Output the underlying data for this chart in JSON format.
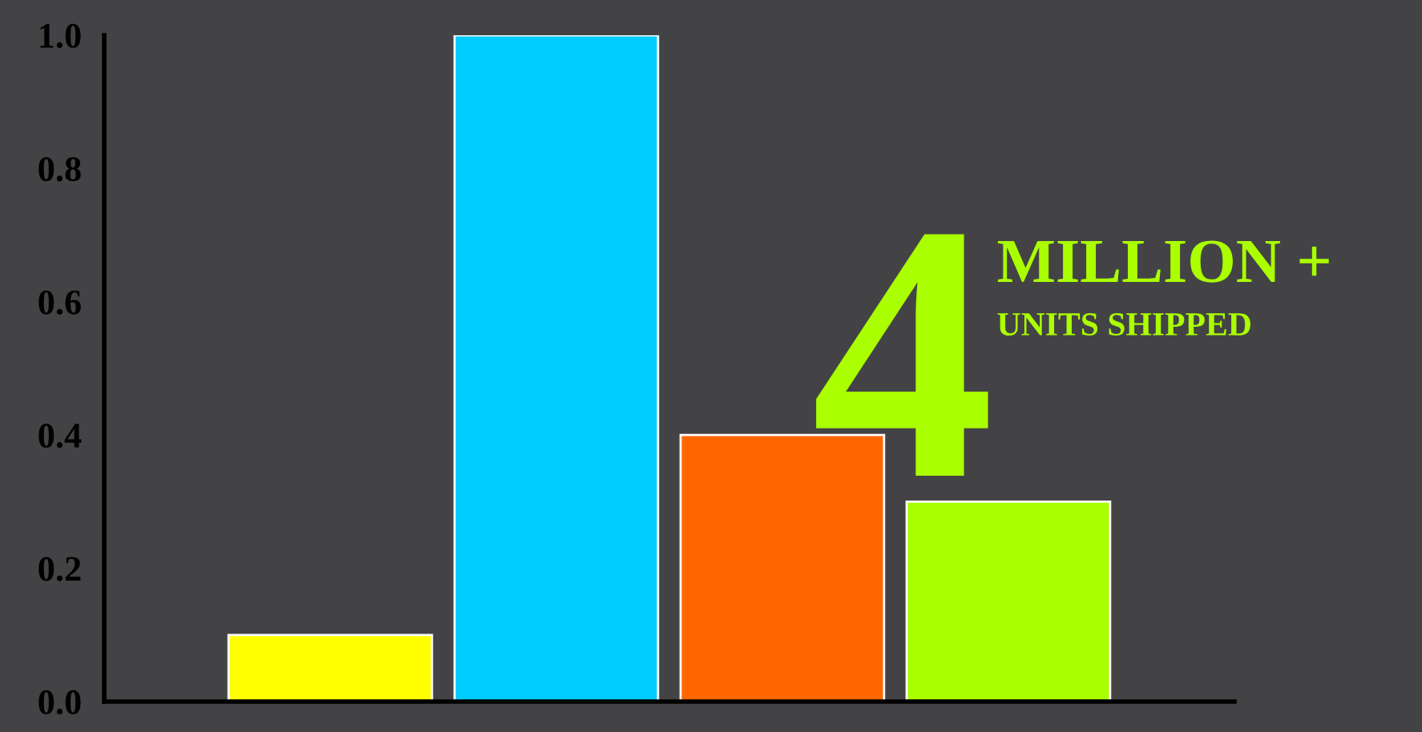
{
  "chart_data": {
    "type": "bar",
    "categories": [
      null,
      null,
      null,
      null
    ],
    "values": [
      0.1,
      1.0,
      0.4,
      0.3
    ],
    "colors": [
      "#ffff00",
      "#00ccff",
      "#ff6600",
      "#aaff00"
    ],
    "ylim": [
      0,
      1
    ],
    "yticks": [
      {
        "value": 0,
        "label": "0.0"
      },
      {
        "value": 0.2,
        "label": "0.2"
      },
      {
        "value": 0.4,
        "label": "0.4"
      },
      {
        "value": 0.6,
        "label": "0.6"
      },
      {
        "value": 0.8,
        "label": "0.8"
      },
      {
        "value": 1.0,
        "label": "1.0"
      }
    ],
    "annotations": [
      "4",
      "MILLION +",
      "UNITS SHIPPED"
    ],
    "tick_labels": "y",
    "grid": false,
    "legend": false
  }
}
